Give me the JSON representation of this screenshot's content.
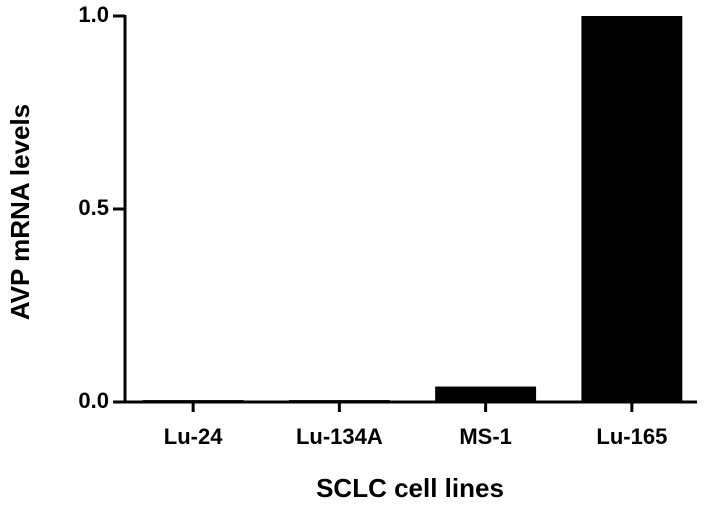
{
  "chart_data": {
    "type": "bar",
    "x_label": "SCLC cell lines",
    "y_label": "AVP mRNA levels",
    "categories": [
      "Lu-24",
      "Lu-134A",
      "MS-1",
      "Lu-165"
    ],
    "values": [
      0.005,
      0.005,
      0.04,
      1.0
    ],
    "color": "#000000",
    "ylim": [
      0,
      1
    ],
    "yticks": [
      {
        "value": 0,
        "label": "0.0"
      },
      {
        "value": 0.5,
        "label": "0.5"
      },
      {
        "value": 1,
        "label": "1.0"
      }
    ]
  }
}
